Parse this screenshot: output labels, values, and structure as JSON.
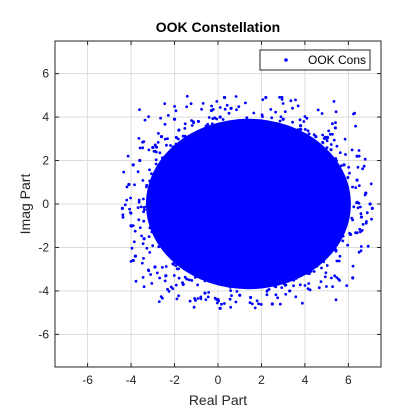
{
  "chart_data": {
    "type": "scatter",
    "title": "OOK Constellation",
    "xlabel": "Real Part",
    "ylabel": "Imag Part",
    "xlim": [
      -7.5,
      7.5
    ],
    "ylim": [
      -7.5,
      7.5
    ],
    "xticks": [
      -6,
      -4,
      -2,
      0,
      2,
      4,
      6
    ],
    "yticks": [
      -6,
      -4,
      -2,
      0,
      2,
      4,
      6
    ],
    "grid": true,
    "legend_position": "top-right",
    "series": [
      {
        "name": "OOK Cons",
        "color": "#0000ff",
        "marker": "dot",
        "approx_center": [
          1.4,
          0
        ],
        "approx_x_range": [
          -4.4,
          7.1
        ],
        "approx_y_range": [
          -4.8,
          5.0
        ],
        "points": [
          [
            -4.4,
            -0.2
          ],
          [
            -4.1,
            0.9
          ],
          [
            -4.0,
            -1.0
          ],
          [
            -3.9,
            1.8
          ],
          [
            -3.9,
            -2.6
          ],
          [
            -3.6,
            2.0
          ],
          [
            -3.4,
            -1.6
          ],
          [
            -3.0,
            2.6
          ],
          [
            -2.9,
            -2.9
          ],
          [
            -2.6,
            3.1
          ],
          [
            -2.4,
            -3.3
          ],
          [
            -1.8,
            3.4
          ],
          [
            -1.6,
            -3.7
          ],
          [
            -0.9,
            3.8
          ],
          [
            -0.6,
            -4.1
          ],
          [
            -0.3,
            4.3
          ],
          [
            0.0,
            -4.4
          ],
          [
            0.1,
            -4.8
          ],
          [
            0.1,
            4.0
          ],
          [
            0.3,
            4.9
          ],
          [
            0.6,
            4.4
          ],
          [
            1.0,
            -4.2
          ],
          [
            1.5,
            -4.3
          ],
          [
            2.2,
            4.9
          ],
          [
            2.5,
            -4.6
          ],
          [
            3.0,
            3.9
          ],
          [
            3.3,
            -4.0
          ],
          [
            3.8,
            3.6
          ],
          [
            4.2,
            -3.2
          ],
          [
            4.5,
            3.1
          ],
          [
            4.8,
            -2.6
          ],
          [
            5.2,
            2.5
          ],
          [
            5.4,
            -2.1
          ],
          [
            5.8,
            1.8
          ],
          [
            6.1,
            -1.4
          ],
          [
            6.4,
            1.1
          ],
          [
            6.6,
            -0.6
          ],
          [
            6.8,
            0.5
          ],
          [
            7.0,
            0.0
          ],
          [
            7.1,
            -0.2
          ],
          [
            6.2,
            -3.4
          ],
          [
            6.4,
            2.2
          ],
          [
            -3.8,
            -2.4
          ],
          [
            5.4,
            3.5
          ],
          [
            -2.0,
            3.9
          ]
        ]
      }
    ]
  }
}
